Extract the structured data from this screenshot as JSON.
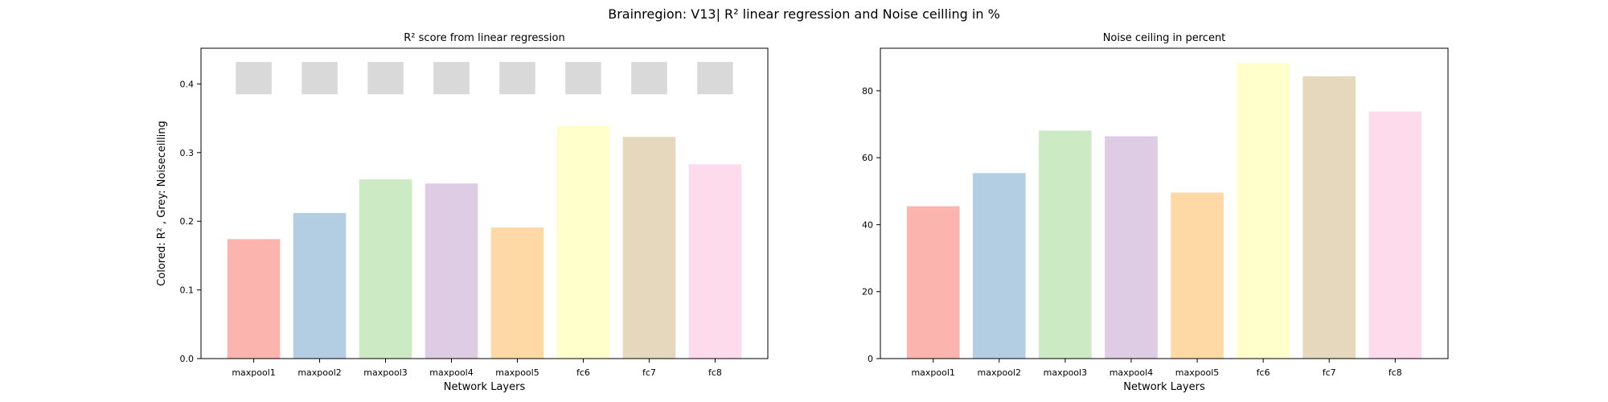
{
  "figure": {
    "suptitle": "Brainregion: V13| R² linear regression and Noise ceilling in %"
  },
  "chart_data": [
    {
      "type": "bar",
      "title": "R² score from linear regression",
      "xlabel": "Network Layers",
      "ylabel": "Colored: R² , Grey: Noiseceilling",
      "categories": [
        "maxpool1",
        "maxpool2",
        "maxpool3",
        "maxpool4",
        "maxpool5",
        "fc6",
        "fc7",
        "fc8"
      ],
      "ylim": [
        0,
        0.452
      ],
      "yticks": [
        0.0,
        0.1,
        0.2,
        0.3,
        0.4
      ],
      "ytick_labels": [
        "0.0",
        "0.1",
        "0.2",
        "0.3",
        "0.4"
      ],
      "series": [
        {
          "values": [
            0.174,
            0.212,
            0.261,
            0.255,
            0.191,
            0.339,
            0.323,
            0.283
          ]
        }
      ],
      "noise_ceiling_markers": {
        "low": 0.385,
        "high": 0.432,
        "color": "#d9d9d9"
      },
      "colors": [
        "#fbb4ae",
        "#b3cde3",
        "#ccebc5",
        "#decbe4",
        "#fed9a6",
        "#ffffcc",
        "#e5d8bd",
        "#fddaec"
      ],
      "grid": false
    },
    {
      "type": "bar",
      "title": "Noise ceiling in percent",
      "xlabel": "Network Layers",
      "ylabel": "",
      "categories": [
        "maxpool1",
        "maxpool2",
        "maxpool3",
        "maxpool4",
        "maxpool5",
        "fc6",
        "fc7",
        "fc8"
      ],
      "ylim": [
        0,
        92.7
      ],
      "yticks": [
        0,
        20,
        40,
        60,
        80
      ],
      "ytick_labels": [
        "0",
        "20",
        "40",
        "60",
        "80"
      ],
      "series": [
        {
          "values": [
            45.5,
            55.4,
            68.1,
            66.4,
            49.6,
            88.3,
            84.3,
            73.8
          ]
        }
      ],
      "colors": [
        "#fbb4ae",
        "#b3cde3",
        "#ccebc5",
        "#decbe4",
        "#fed9a6",
        "#ffffcc",
        "#e5d8bd",
        "#fddaec"
      ],
      "grid": false
    }
  ]
}
